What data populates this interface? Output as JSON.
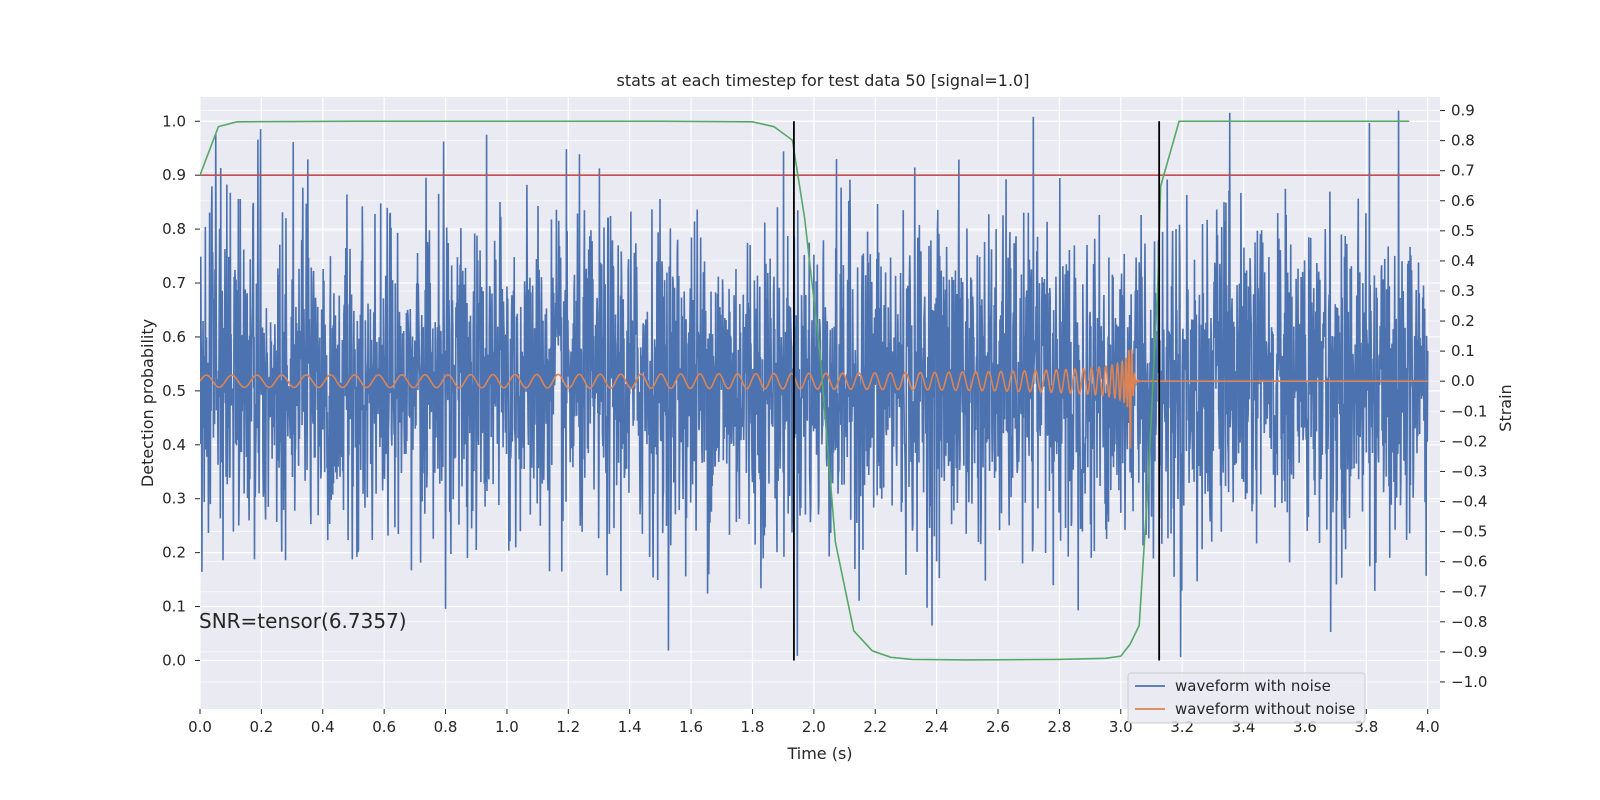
{
  "chart_data": {
    "type": "line",
    "title": "stats at each timestep for test data 50 [signal=1.0]",
    "xlabel": "Time (s)",
    "ylabel_left": "Detection probability",
    "ylabel_right": "Strain",
    "xlim": [
      0.0,
      4.04
    ],
    "ylim_left": [
      -0.09,
      1.045
    ],
    "ylim_right": [
      -1.09,
      0.945
    ],
    "x_ticks": [
      "0.0",
      "0.2",
      "0.4",
      "0.6",
      "0.8",
      "1.0",
      "1.2",
      "1.4",
      "1.6",
      "1.8",
      "2.0",
      "2.2",
      "2.4",
      "2.6",
      "2.8",
      "3.0",
      "3.2",
      "3.4",
      "3.6",
      "3.8",
      "4.0"
    ],
    "y_left_ticks": [
      "0.0",
      "0.1",
      "0.2",
      "0.3",
      "0.4",
      "0.5",
      "0.6",
      "0.7",
      "0.8",
      "0.9",
      "1.0"
    ],
    "y_right_ticks": [
      "−1.0",
      "−0.9",
      "−0.8",
      "−0.7",
      "−0.6",
      "−0.5",
      "−0.4",
      "−0.3",
      "−0.2",
      "−0.1",
      "0.0",
      "0.1",
      "0.2",
      "0.3",
      "0.4",
      "0.5",
      "0.6",
      "0.7",
      "0.8",
      "0.9"
    ],
    "grid": true,
    "legend_placement": "lower-right",
    "annotation": "SNR=tensor(6.7357)",
    "colors": {
      "background": "#eaeaf2",
      "grid": "#ffffff",
      "noise": "#4c72b0",
      "clean": "#dd8452",
      "probability": "#55a868",
      "threshold": "#c44e52",
      "markers": "#000000"
    },
    "series": [
      {
        "name": "waveform with noise",
        "axis": "right",
        "x_range": [
          0.0,
          4.0
        ],
        "y_min": -0.97,
        "y_max": 0.9,
        "y_std": 0.27
      },
      {
        "name": "waveform without noise",
        "axis": "right",
        "x_range": [
          0.0,
          4.0
        ],
        "merger_time": 3.03,
        "start_amplitude": 0.02,
        "peak_amplitude": 0.28,
        "start_frequency": 12,
        "end_frequency": 110
      },
      {
        "axis": "left",
        "x": [
          0.0,
          0.06,
          0.12,
          0.5,
          1.0,
          1.5,
          1.8,
          1.87,
          1.93,
          1.97,
          2.02,
          2.07,
          2.13,
          2.19,
          2.25,
          2.32,
          2.5,
          2.8,
          2.95,
          3.0,
          3.03,
          3.06,
          3.09,
          3.12,
          3.13,
          3.19,
          3.94
        ],
        "y": [
          0.9,
          0.99,
          0.999,
          1.0,
          1.0,
          1.0,
          0.999,
          0.99,
          0.965,
          0.82,
          0.57,
          0.22,
          0.055,
          0.018,
          0.006,
          0.002,
          0.001,
          0.002,
          0.004,
          0.008,
          0.03,
          0.065,
          0.34,
          0.69,
          0.88,
          1.0,
          1.0
        ]
      },
      {
        "axis": "left",
        "x": [
          0.0,
          4.04
        ],
        "y": [
          0.9,
          0.9
        ]
      }
    ],
    "vertical_markers_x": [
      1.935,
      3.125
    ]
  }
}
